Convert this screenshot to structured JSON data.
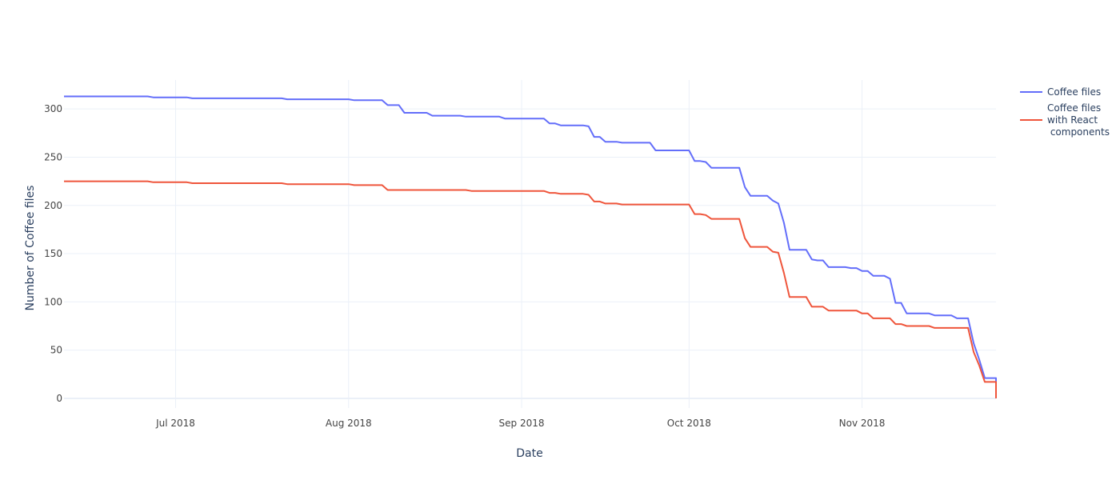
{
  "chart_data": {
    "type": "line",
    "title": "",
    "xlabel": "Date",
    "ylabel": "Number of Coffee files",
    "xlim": [
      "2018-06-11",
      "2018-11-25"
    ],
    "ylim": [
      -10,
      330
    ],
    "x_ticks": [
      {
        "date": "2018-07-01",
        "label": "Jul 2018"
      },
      {
        "date": "2018-08-01",
        "label": "Aug 2018"
      },
      {
        "date": "2018-09-01",
        "label": "Sep 2018"
      },
      {
        "date": "2018-10-01",
        "label": "Oct 2018"
      },
      {
        "date": "2018-11-01",
        "label": "Nov 2018"
      }
    ],
    "y_ticks": [
      0,
      50,
      100,
      150,
      200,
      250,
      300
    ],
    "grid": true,
    "legend_position": "top-right",
    "series": [
      {
        "name": "Coffee files",
        "color": "#636efa",
        "points": [
          [
            "2018-06-11",
            313
          ],
          [
            "2018-06-26",
            313
          ],
          [
            "2018-06-27",
            312
          ],
          [
            "2018-07-03",
            312
          ],
          [
            "2018-07-04",
            311
          ],
          [
            "2018-07-20",
            311
          ],
          [
            "2018-07-21",
            310
          ],
          [
            "2018-08-01",
            310
          ],
          [
            "2018-08-02",
            309
          ],
          [
            "2018-08-07",
            309
          ],
          [
            "2018-08-08",
            304
          ],
          [
            "2018-08-10",
            304
          ],
          [
            "2018-08-11",
            296
          ],
          [
            "2018-08-15",
            296
          ],
          [
            "2018-08-16",
            293
          ],
          [
            "2018-08-21",
            293
          ],
          [
            "2018-08-22",
            292
          ],
          [
            "2018-08-28",
            292
          ],
          [
            "2018-08-29",
            290
          ],
          [
            "2018-09-05",
            290
          ],
          [
            "2018-09-06",
            285
          ],
          [
            "2018-09-07",
            285
          ],
          [
            "2018-09-08",
            283
          ],
          [
            "2018-09-12",
            283
          ],
          [
            "2018-09-13",
            282
          ],
          [
            "2018-09-14",
            271
          ],
          [
            "2018-09-15",
            271
          ],
          [
            "2018-09-16",
            266
          ],
          [
            "2018-09-18",
            266
          ],
          [
            "2018-09-19",
            265
          ],
          [
            "2018-09-24",
            265
          ],
          [
            "2018-09-25",
            257
          ],
          [
            "2018-10-01",
            257
          ],
          [
            "2018-10-02",
            246
          ],
          [
            "2018-10-03",
            246
          ],
          [
            "2018-10-04",
            245
          ],
          [
            "2018-10-05",
            239
          ],
          [
            "2018-10-10",
            239
          ],
          [
            "2018-10-11",
            219
          ],
          [
            "2018-10-12",
            210
          ],
          [
            "2018-10-15",
            210
          ],
          [
            "2018-10-16",
            205
          ],
          [
            "2018-10-17",
            202
          ],
          [
            "2018-10-18",
            182
          ],
          [
            "2018-10-19",
            154
          ],
          [
            "2018-10-22",
            154
          ],
          [
            "2018-10-23",
            144
          ],
          [
            "2018-10-24",
            143
          ],
          [
            "2018-10-25",
            143
          ],
          [
            "2018-10-26",
            136
          ],
          [
            "2018-10-29",
            136
          ],
          [
            "2018-10-30",
            135
          ],
          [
            "2018-10-31",
            135
          ],
          [
            "2018-11-01",
            132
          ],
          [
            "2018-11-02",
            132
          ],
          [
            "2018-11-03",
            127
          ],
          [
            "2018-11-05",
            127
          ],
          [
            "2018-11-06",
            124
          ],
          [
            "2018-11-07",
            99
          ],
          [
            "2018-11-08",
            99
          ],
          [
            "2018-11-09",
            88
          ],
          [
            "2018-11-13",
            88
          ],
          [
            "2018-11-14",
            86
          ],
          [
            "2018-11-17",
            86
          ],
          [
            "2018-11-18",
            83
          ],
          [
            "2018-11-20",
            83
          ],
          [
            "2018-11-21",
            57
          ],
          [
            "2018-11-22",
            40
          ],
          [
            "2018-11-23",
            21
          ],
          [
            "2018-11-25",
            21
          ],
          [
            "2018-11-25",
            0
          ]
        ]
      },
      {
        "name": "Coffee files with React components",
        "legend_lines": [
          "Coffee files",
          "with React",
          " components"
        ],
        "color": "#ef553b",
        "points": [
          [
            "2018-06-11",
            225
          ],
          [
            "2018-06-26",
            225
          ],
          [
            "2018-06-27",
            224
          ],
          [
            "2018-07-03",
            224
          ],
          [
            "2018-07-04",
            223
          ],
          [
            "2018-07-20",
            223
          ],
          [
            "2018-07-21",
            222
          ],
          [
            "2018-08-01",
            222
          ],
          [
            "2018-08-02",
            221
          ],
          [
            "2018-08-07",
            221
          ],
          [
            "2018-08-08",
            216
          ],
          [
            "2018-08-22",
            216
          ],
          [
            "2018-08-23",
            215
          ],
          [
            "2018-09-05",
            215
          ],
          [
            "2018-09-06",
            213
          ],
          [
            "2018-09-07",
            213
          ],
          [
            "2018-09-08",
            212
          ],
          [
            "2018-09-12",
            212
          ],
          [
            "2018-09-13",
            211
          ],
          [
            "2018-09-14",
            204
          ],
          [
            "2018-09-15",
            204
          ],
          [
            "2018-09-16",
            202
          ],
          [
            "2018-09-18",
            202
          ],
          [
            "2018-09-19",
            201
          ],
          [
            "2018-10-01",
            201
          ],
          [
            "2018-10-02",
            191
          ],
          [
            "2018-10-03",
            191
          ],
          [
            "2018-10-04",
            190
          ],
          [
            "2018-10-05",
            186
          ],
          [
            "2018-10-10",
            186
          ],
          [
            "2018-10-11",
            166
          ],
          [
            "2018-10-12",
            157
          ],
          [
            "2018-10-15",
            157
          ],
          [
            "2018-10-16",
            152
          ],
          [
            "2018-10-17",
            151
          ],
          [
            "2018-10-18",
            130
          ],
          [
            "2018-10-19",
            105
          ],
          [
            "2018-10-22",
            105
          ],
          [
            "2018-10-23",
            95
          ],
          [
            "2018-10-24",
            95
          ],
          [
            "2018-10-25",
            95
          ],
          [
            "2018-10-26",
            91
          ],
          [
            "2018-10-31",
            91
          ],
          [
            "2018-11-01",
            88
          ],
          [
            "2018-11-02",
            88
          ],
          [
            "2018-11-03",
            83
          ],
          [
            "2018-11-06",
            83
          ],
          [
            "2018-11-07",
            77
          ],
          [
            "2018-11-08",
            77
          ],
          [
            "2018-11-09",
            75
          ],
          [
            "2018-11-13",
            75
          ],
          [
            "2018-11-14",
            73
          ],
          [
            "2018-11-20",
            73
          ],
          [
            "2018-11-21",
            48
          ],
          [
            "2018-11-22",
            34
          ],
          [
            "2018-11-23",
            17
          ],
          [
            "2018-11-25",
            17
          ],
          [
            "2018-11-25",
            0
          ]
        ]
      }
    ]
  }
}
